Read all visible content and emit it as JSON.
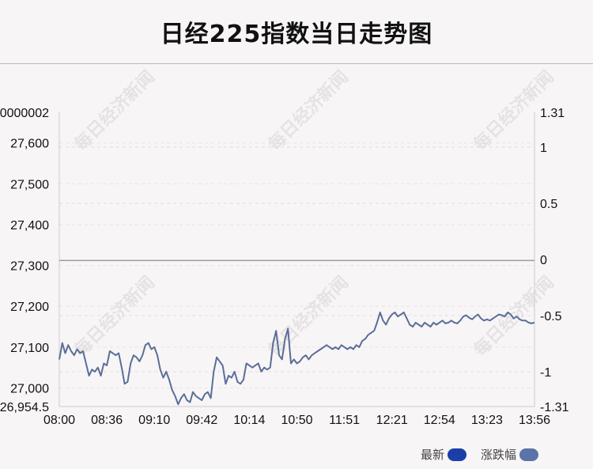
{
  "title": "日经225指数当日走势图",
  "watermark": "每日经济新闻",
  "legend": {
    "latest_label": "最新",
    "change_label": "涨跌幅",
    "latest_color": "#1a3fa8",
    "change_color": "#5a73a8"
  },
  "chart_data": {
    "type": "line",
    "title": "日经225指数当日走势图",
    "x_tick_labels": [
      "08:00",
      "08:36",
      "09:10",
      "09:42",
      "10:14",
      "10:50",
      "11:51",
      "12:21",
      "12:54",
      "13:23",
      "13:56"
    ],
    "y_left": {
      "top_label": "0000002",
      "bottom_label": "26,954.5",
      "ticks": [
        {
          "value": 27600,
          "label": "27,600"
        },
        {
          "value": 27500,
          "label": "27,500"
        },
        {
          "value": 27400,
          "label": "27,400"
        },
        {
          "value": 27300,
          "label": "27,300"
        },
        {
          "value": 27200,
          "label": "27,200"
        },
        {
          "value": 27100,
          "label": "27,100"
        },
        {
          "value": 27000,
          "label": "27,000"
        }
      ],
      "range": [
        26954.5,
        27675
      ]
    },
    "y_right": {
      "ticks": [
        {
          "value": 1.31,
          "label": "1.31"
        },
        {
          "value": 1,
          "label": "1"
        },
        {
          "value": 0.5,
          "label": "0.5"
        },
        {
          "value": 0,
          "label": "0"
        },
        {
          "value": -0.5,
          "label": "-0.5"
        },
        {
          "value": -1,
          "label": "-1"
        },
        {
          "value": -1.31,
          "label": "-1.31"
        }
      ],
      "range": [
        -1.31,
        1.31
      ]
    },
    "baseline_value": 27312,
    "grid": true,
    "line_color": "#5a6e99",
    "series": [
      {
        "values": [
          27070,
          27110,
          27085,
          27105,
          27090,
          27080,
          27095,
          27085,
          27090,
          27060,
          27030,
          27045,
          27040,
          27050,
          27030,
          27060,
          27055,
          27090,
          27085,
          27080,
          27085,
          27050,
          27010,
          27015,
          27060,
          27080,
          27075,
          27065,
          27080,
          27105,
          27110,
          27095,
          27100,
          27080,
          27045,
          27025,
          27040,
          27020,
          26995,
          26980,
          26960,
          26975,
          26985,
          26970,
          26965,
          26990,
          26980,
          26975,
          26970,
          26985,
          26990,
          26975,
          27040,
          27075,
          27065,
          27055,
          27010,
          27030,
          27025,
          27040,
          27015,
          27010,
          27020,
          27060,
          27055,
          27050,
          27055,
          27060,
          27040,
          27050,
          27045,
          27050,
          27110,
          27140,
          27080,
          27070,
          27120,
          27145,
          27060,
          27070,
          27060,
          27065,
          27075,
          27080,
          27070,
          27080,
          27085,
          27090,
          27095,
          27100,
          27105,
          27100,
          27095,
          27100,
          27095,
          27105,
          27100,
          27095,
          27100,
          27095,
          27105,
          27100,
          27115,
          27120,
          27130,
          27135,
          27140,
          27160,
          27185,
          27165,
          27155,
          27170,
          27180,
          27185,
          27175,
          27180,
          27185,
          27170,
          27155,
          27150,
          27160,
          27155,
          27150,
          27160,
          27155,
          27150,
          27160,
          27155,
          27160,
          27165,
          27158,
          27160,
          27165,
          27160,
          27158,
          27165,
          27175,
          27178,
          27172,
          27168,
          27175,
          27180,
          27170,
          27165,
          27168,
          27165,
          27170,
          27175,
          27180,
          27178,
          27175,
          27185,
          27180,
          27170,
          27175,
          27168,
          27165,
          27165,
          27160,
          27158,
          27160
        ]
      }
    ]
  }
}
